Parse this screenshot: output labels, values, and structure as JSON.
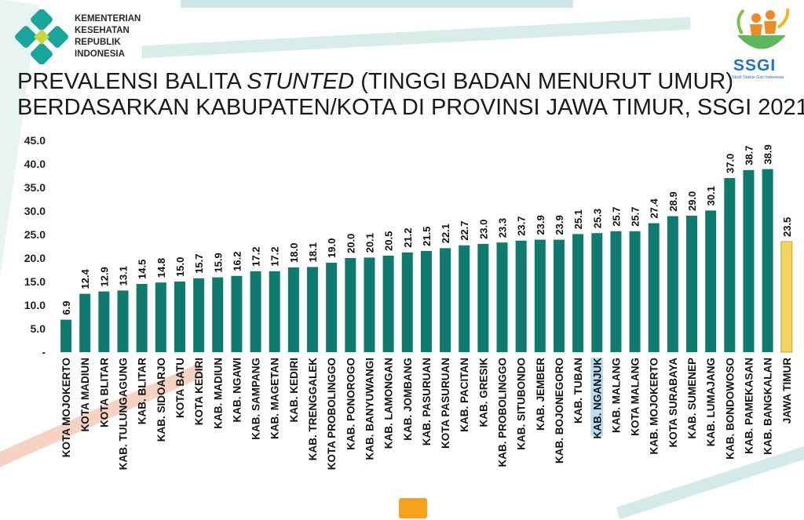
{
  "header": {
    "org_lines": [
      "KEMENTERIAN",
      "KESEHATAN",
      "REPUBLIK",
      "INDONESIA"
    ],
    "ssgi_logo": "SSGI",
    "ssgi_tagline": "Studi Status Gizi Indonesia"
  },
  "chart_data": {
    "type": "bar",
    "title_line1_prefix": "PREVALENSI BALITA ",
    "title_line1_italic": "STUNTED",
    "title_line1_suffix": " (TINGGI BADAN MENURUT UMUR)",
    "title_line2": "BERDASARKAN KABUPATEN/KOTA  DI PROVINSI JAWA TIMUR, SSGI 2021",
    "ylim": [
      0,
      45
    ],
    "yticks": [
      "-",
      "5.0",
      "10.0",
      "15.0",
      "20.0",
      "25.0",
      "30.0",
      "35.0",
      "40.0",
      "45.0"
    ],
    "grid": false,
    "categories": [
      "KOTA MOJOKERTO",
      "KOTA MADIUN",
      "KOTA BLITAR",
      "KAB. TULUNGAGUNG",
      "KAB. BLITAR",
      "KAB. SIDOARJO",
      "KOTA BATU",
      "KOTA KEDIRI",
      "KAB. MADIUN",
      "KAB. NGAWI",
      "KAB. SAMPANG",
      "KAB. MAGETAN",
      "KAB. KEDIRI",
      "KAB. TRENGGALEK",
      "KOTA PROBOLINGGO",
      "KAB. PONOROGO",
      "KAB. BANYUWANGI",
      "KAB. LAMONGAN",
      "KAB. JOMBANG",
      "KAB. PASURUAN",
      "KOTA PASURUAN",
      "KAB. PACITAN",
      "KAB. GRESIK",
      "KAB. PROBOLINGGO",
      "KAB. SITUBONDO",
      "KAB. JEMBER",
      "KAB. BOJONEGORO",
      "KAB. TUBAN",
      "KAB. NGANJUK",
      "KAB. MALANG",
      "KOTA MALANG",
      "KAB. MOJOKERTO",
      "KOTA SURABAYA",
      "KAB. SUMENEP",
      "KAB. LUMAJANG",
      "KAB. BONDOWOSO",
      "KAB. PAMEKASAN",
      "KAB. BANGKALAN",
      "JAWA TIMUR"
    ],
    "values": [
      6.9,
      12.4,
      12.9,
      13.1,
      14.5,
      14.8,
      15.0,
      15.7,
      15.9,
      16.2,
      17.2,
      17.2,
      18.0,
      18.1,
      19.0,
      20.0,
      20.1,
      20.5,
      21.2,
      21.5,
      22.1,
      22.7,
      23.0,
      23.3,
      23.7,
      23.9,
      23.9,
      25.1,
      25.3,
      25.7,
      25.7,
      27.4,
      28.9,
      29.0,
      30.1,
      37.0,
      38.7,
      38.9,
      23.5
    ],
    "value_labels": [
      "6.9",
      "12.4",
      "12.9",
      "13.1",
      "14.5",
      "14.8",
      "15.0",
      "15.7",
      "15.9",
      "16.2",
      "17.2",
      "17.2",
      "18.0",
      "18.1",
      "19.0",
      "20.0",
      "20.1",
      "20.5",
      "21.2",
      "21.5",
      "22.1",
      "22.7",
      "23.0",
      "23.3",
      "23.7",
      "23.9",
      "23.9",
      "25.1",
      "25.3",
      "25.7",
      "25.7",
      "27.4",
      "28.9",
      "29.0",
      "30.1",
      "37.0",
      "38.7",
      "38.9",
      "23.5"
    ],
    "bar_color": "#0f7a6e",
    "highlight_color": "#f4d35e",
    "highlight_index": 38,
    "label_highlight_index": 28,
    "label_highlight_bg": "#b9dcef"
  }
}
